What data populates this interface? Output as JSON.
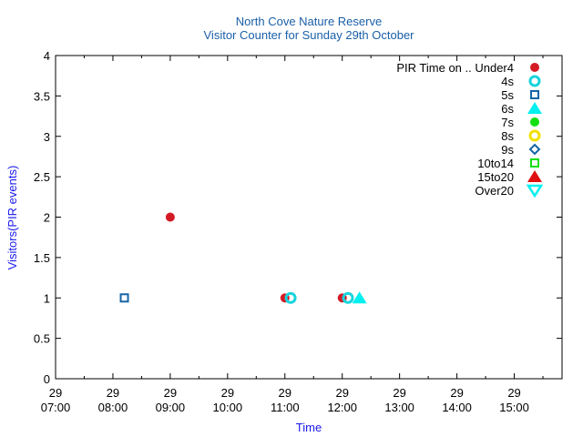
{
  "chart_data": {
    "type": "scatter",
    "title": "North Cove Nature Reserve",
    "subtitle": "Visitor Counter for Sunday 29th October",
    "xlabel": "Time",
    "ylabel": "Visitors(PIR events)",
    "xlim": [
      "07:00",
      "15:50"
    ],
    "ylim": [
      0,
      4
    ],
    "x_ticks": [
      {
        "day": "29",
        "time": "07:00"
      },
      {
        "day": "29",
        "time": "08:00"
      },
      {
        "day": "29",
        "time": "09:00"
      },
      {
        "day": "29",
        "time": "10:00"
      },
      {
        "day": "29",
        "time": "11:00"
      },
      {
        "day": "29",
        "time": "12:00"
      },
      {
        "day": "29",
        "time": "13:00"
      },
      {
        "day": "29",
        "time": "14:00"
      },
      {
        "day": "29",
        "time": "15:00"
      }
    ],
    "y_ticks": [
      "0",
      "0.5",
      "1",
      "1.5",
      "2",
      "2.5",
      "3",
      "3.5",
      "4"
    ],
    "legend_title": "PIR Time on ..",
    "legend_position": "top-right",
    "grid": false,
    "series": [
      {
        "name": "Under4",
        "marker": "filled-circle",
        "color": "#d41a24",
        "points": [
          {
            "x": "09:00",
            "y": 2
          },
          {
            "x": "11:00",
            "y": 1
          },
          {
            "x": "12:00",
            "y": 1
          }
        ]
      },
      {
        "name": "4s",
        "marker": "open-circle",
        "color": "#17d4dc",
        "points": [
          {
            "x": "11:06",
            "y": 1
          },
          {
            "x": "12:06",
            "y": 1
          }
        ]
      },
      {
        "name": "5s",
        "marker": "open-square",
        "color": "#1565a8",
        "points": [
          {
            "x": "08:12",
            "y": 1
          }
        ]
      },
      {
        "name": "6s",
        "marker": "filled-triangle",
        "color": "#00f0f0",
        "points": [
          {
            "x": "12:18",
            "y": 1
          }
        ]
      },
      {
        "name": "7s",
        "marker": "filled-circle",
        "color": "#12e012",
        "points": []
      },
      {
        "name": "8s",
        "marker": "open-circle",
        "color": "#f0e000",
        "points": []
      },
      {
        "name": "9s",
        "marker": "open-diamond",
        "color": "#1565a8",
        "points": []
      },
      {
        "name": "10to14",
        "marker": "open-square",
        "color": "#12e012",
        "points": []
      },
      {
        "name": "15to20",
        "marker": "filled-triangle",
        "color": "#e01010",
        "points": []
      },
      {
        "name": "Over20",
        "marker": "open-inv-triangle",
        "color": "#00f0f0",
        "points": []
      }
    ]
  }
}
